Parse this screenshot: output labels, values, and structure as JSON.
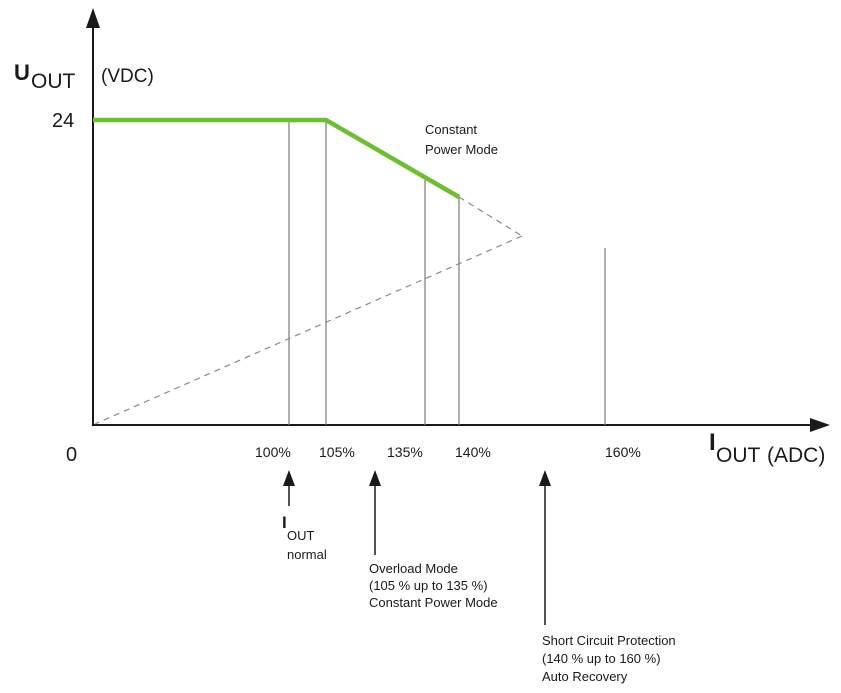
{
  "y_axis": {
    "symbol": "U",
    "subscript": "OUT",
    "unit": "(VDC)",
    "tick_24": "24"
  },
  "x_axis": {
    "symbol": "I",
    "subscript": "OUT",
    "unit": " (ADC)",
    "origin": "0"
  },
  "ticks": [
    "100%",
    "105%",
    "135%",
    "140%",
    "160%"
  ],
  "curve_label": {
    "line1": "Constant",
    "line2": "Power Mode"
  },
  "annotations": {
    "normal": {
      "symbol": "I",
      "subscript": "OUT",
      "line2": "normal"
    },
    "overload": {
      "line1": "Overload Mode",
      "line2": "(105 % up to 135 %)",
      "line3": "Constant Power Mode"
    },
    "short_circuit": {
      "line1": "Short Circuit Protection",
      "line2": "(140 % up to 160 %)",
      "line3": "Auto Recovery"
    }
  },
  "colors": {
    "curve": "#6cbf2f",
    "axis": "#1a1a1a",
    "guide": "#7a7a7a",
    "dashed": "#8a8a8a"
  }
}
